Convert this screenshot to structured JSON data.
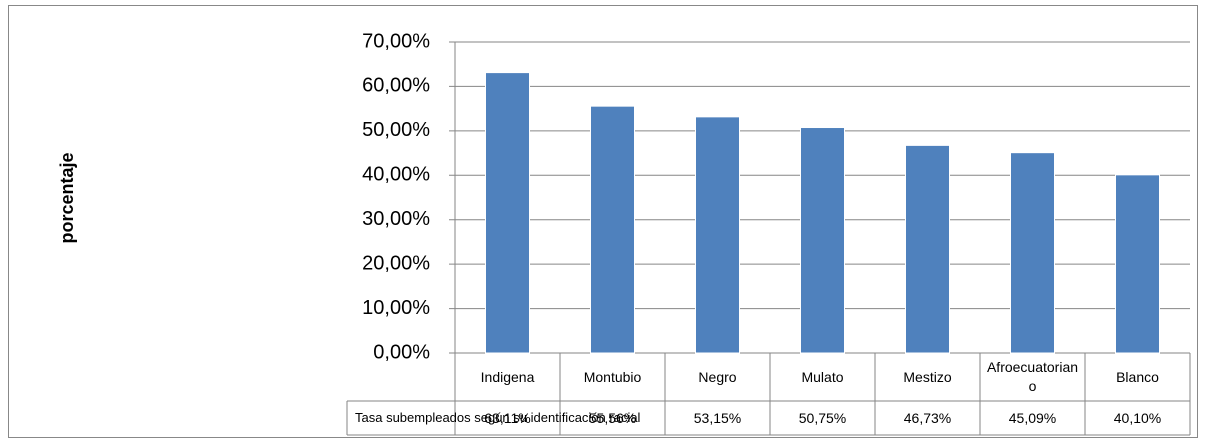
{
  "chart_data": {
    "type": "bar",
    "y_label": "porcentaje",
    "categories": [
      "Indigena",
      "Montubio",
      "Negro",
      "Mulato",
      "Mestizo",
      "Afroecuatoriano",
      "Blanco"
    ],
    "series": [
      {
        "name": "Tasa subempleados según su identificación racial",
        "color": "#4f81bd",
        "values": [
          63.11,
          55.56,
          53.15,
          50.75,
          46.73,
          45.09,
          40.1
        ],
        "value_labels": [
          "63,11%",
          "55,56%",
          "53,15%",
          "50,75%",
          "46,73%",
          "45,09%",
          "40,10%"
        ]
      }
    ],
    "ylim": [
      0,
      70
    ],
    "yticks": [
      {
        "value": 0,
        "label": "0,00%"
      },
      {
        "value": 10,
        "label": "10,00%"
      },
      {
        "value": 20,
        "label": "20,00%"
      },
      {
        "value": 30,
        "label": "30,00%"
      },
      {
        "value": 40,
        "label": "40,00%"
      },
      {
        "value": 50,
        "label": "50,00%"
      },
      {
        "value": 60,
        "label": "60,00%"
      },
      {
        "value": 70,
        "label": "70,00%"
      }
    ],
    "grid": true
  }
}
